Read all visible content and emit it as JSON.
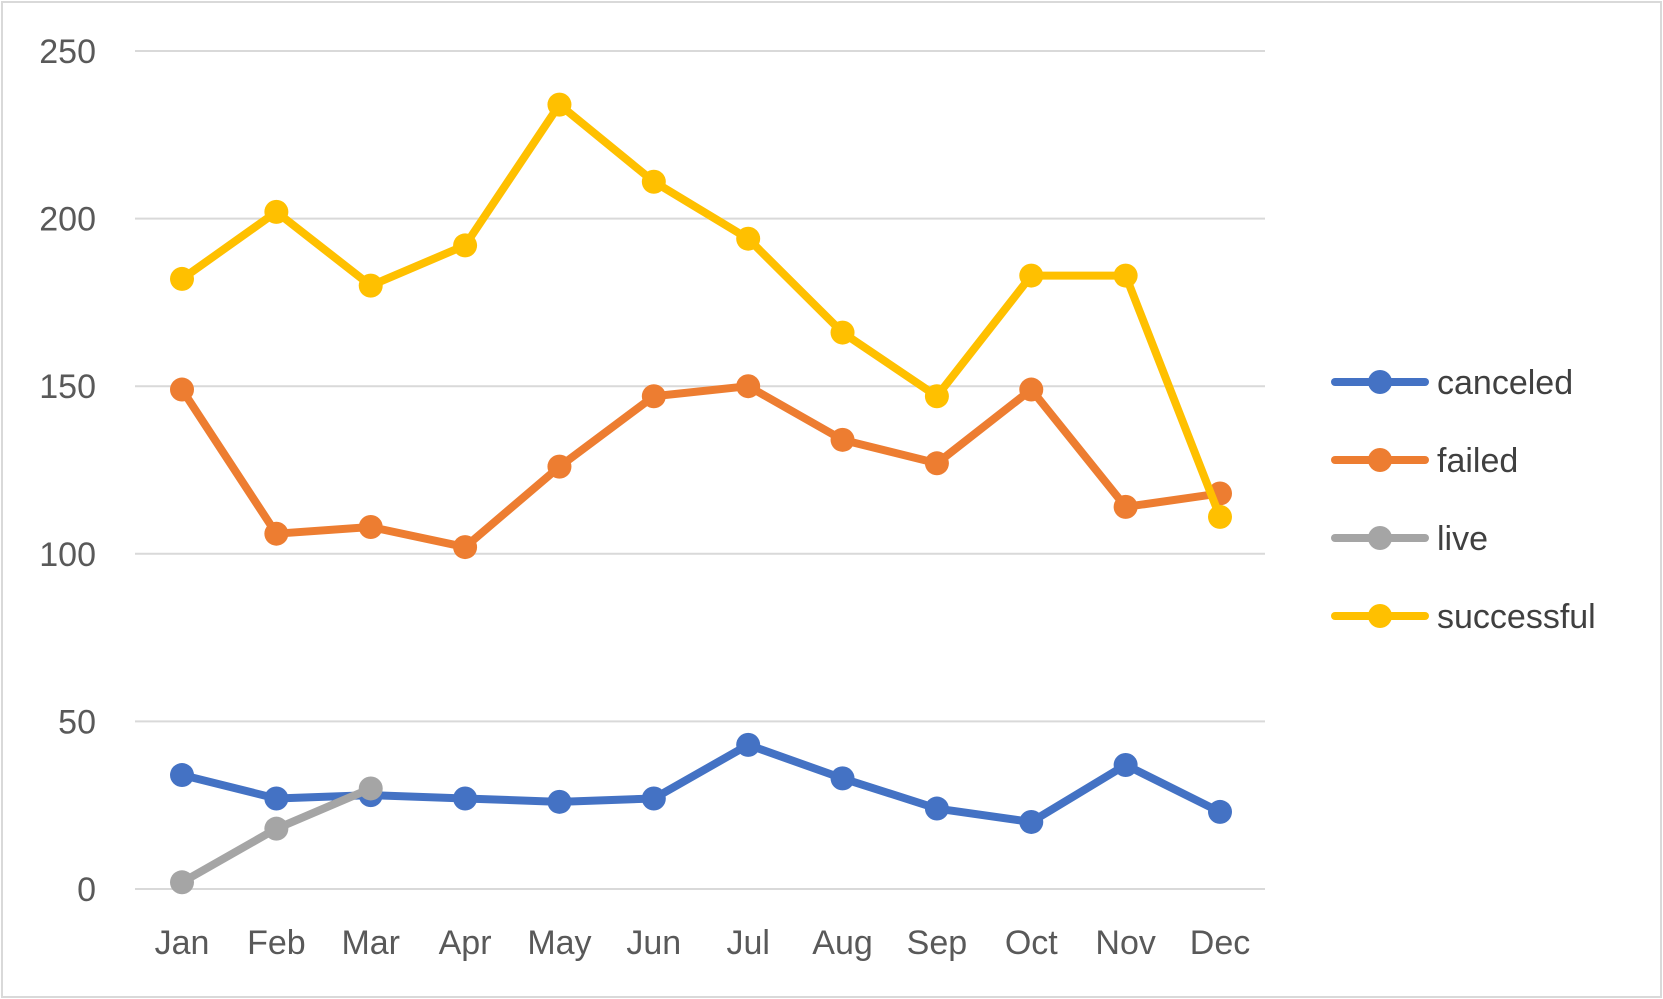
{
  "chart_data": {
    "type": "line",
    "title": "",
    "xlabel": "",
    "ylabel": "",
    "categories": [
      "Jan",
      "Feb",
      "Mar",
      "Apr",
      "May",
      "Jun",
      "Jul",
      "Aug",
      "Sep",
      "Oct",
      "Nov",
      "Dec"
    ],
    "ylim": [
      0,
      250
    ],
    "yticks": [
      0,
      50,
      100,
      150,
      200,
      250
    ],
    "grid": true,
    "legend_position": "right",
    "series": [
      {
        "name": "canceled",
        "color": "#4472C4",
        "values": [
          34,
          27,
          28,
          27,
          26,
          27,
          43,
          33,
          24,
          20,
          37,
          23
        ]
      },
      {
        "name": "failed",
        "color": "#ED7D31",
        "values": [
          149,
          106,
          108,
          102,
          126,
          147,
          150,
          134,
          127,
          149,
          114,
          118
        ]
      },
      {
        "name": "live",
        "color": "#A5A5A5",
        "values": [
          2,
          18,
          30,
          null,
          null,
          null,
          null,
          null,
          null,
          null,
          null,
          null
        ]
      },
      {
        "name": "successful",
        "color": "#FFC000",
        "values": [
          182,
          202,
          180,
          192,
          234,
          211,
          194,
          166,
          147,
          183,
          183,
          111
        ]
      }
    ]
  }
}
